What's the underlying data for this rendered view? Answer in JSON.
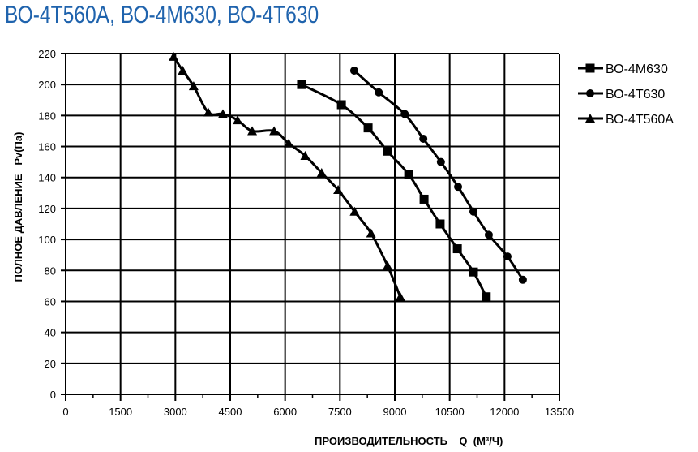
{
  "title": "ВО-4Т560А, ВО-4М630, ВО-4Т630",
  "chart_data": {
    "type": "line",
    "title": "ВО-4Т560А, ВО-4М630, ВО-4Т630",
    "xlabel": "ПРОИЗВОДИТЕЛЬНОСТЬ    Q  (М³/Ч)",
    "ylabel": "ПОЛНОЕ ДАВЛЕНИЕ   Pv(Па)",
    "xlim": [
      0,
      13500
    ],
    "ylim": [
      0,
      220
    ],
    "xticks": [
      0,
      1500,
      3000,
      4500,
      6000,
      7500,
      9000,
      10500,
      12000,
      13500
    ],
    "yticks": [
      0,
      20,
      40,
      60,
      80,
      100,
      120,
      140,
      160,
      180,
      200,
      220
    ],
    "grid": true,
    "legend": "right",
    "series": [
      {
        "name": "ВО-4М630",
        "marker": "square",
        "x": [
          6450,
          7540,
          8270,
          8800,
          9380,
          9800,
          10240,
          10710,
          11150,
          11500
        ],
        "y": [
          200,
          187,
          172,
          157,
          142,
          126,
          110,
          94,
          79,
          63
        ]
      },
      {
        "name": "ВО-4Т630",
        "marker": "circle",
        "x": [
          7890,
          8560,
          9270,
          9780,
          10260,
          10730,
          11150,
          11570,
          12080,
          12500
        ],
        "y": [
          209,
          195,
          181,
          165,
          150,
          134,
          118,
          103,
          89,
          74
        ]
      },
      {
        "name": "ВО-4Т560А",
        "marker": "triangle",
        "x": [
          2950,
          3200,
          3500,
          3900,
          4300,
          4700,
          5100,
          5700,
          6100,
          6550,
          7000,
          7450,
          7900,
          8350,
          8800,
          9150
        ],
        "y": [
          218,
          209,
          199,
          182,
          181,
          177,
          170,
          170,
          162,
          154,
          143,
          132,
          118,
          104,
          83,
          63
        ]
      }
    ]
  }
}
